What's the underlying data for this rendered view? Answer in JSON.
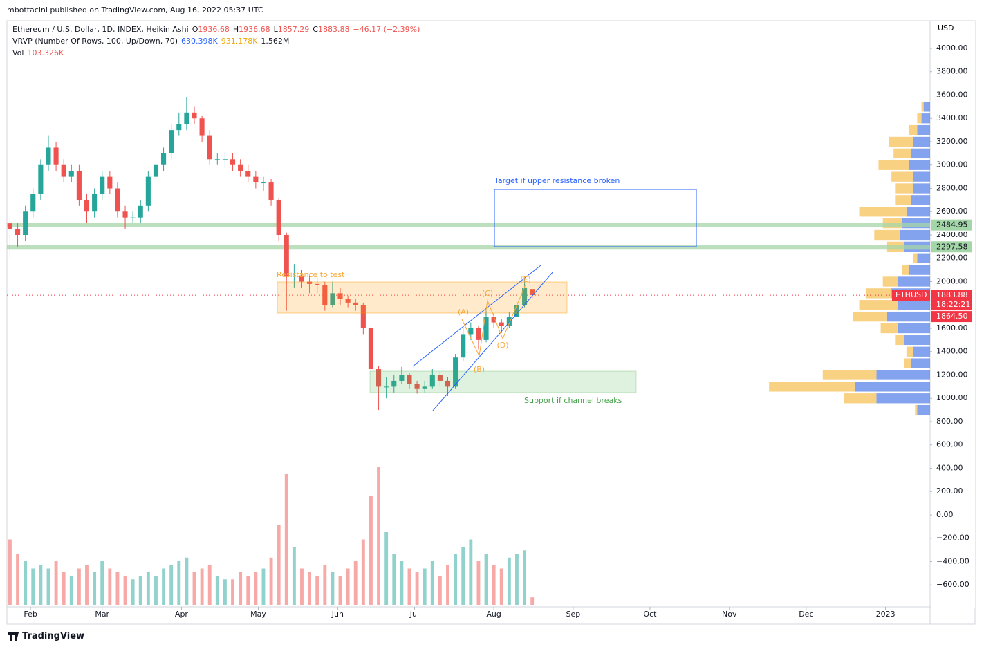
{
  "header": {
    "publisher": "mbottacini published on TradingView.com, Aug 16, 2022 05:37 UTC"
  },
  "footer": {
    "brand": "TradingView"
  },
  "chart_data": {
    "type": "candlestick",
    "title": "Ethereum / U.S. Dollar, 1D, INDEX, Heikin Ashi",
    "ohlc_legend": [
      {
        "label": "O",
        "value": "1936.68"
      },
      {
        "label": "H",
        "value": "1936.68"
      },
      {
        "label": "L",
        "value": "1857.29"
      },
      {
        "label": "C",
        "value": "1883.88"
      }
    ],
    "change": "−46.17 (−2.39%)",
    "indicators": [
      {
        "name": "VRVP (Number Of Rows, 100, Up/Down, 70)",
        "values": [
          "630.398K",
          "931.178K",
          "1.562M"
        ],
        "value_colors": [
          "#2962ff",
          "#f0a500",
          "#131722"
        ]
      },
      {
        "name": "Vol",
        "values": [
          "103.326K"
        ],
        "value_colors": [
          "#ef5350"
        ]
      }
    ],
    "currency": "USD",
    "categories": [
      null,
      null,
      null,
      null,
      null,
      null,
      null,
      null,
      null,
      null,
      null,
      null,
      null,
      null,
      null,
      null,
      null,
      null,
      null,
      null,
      null,
      null,
      null,
      null,
      null,
      null,
      null,
      null,
      null,
      null,
      null,
      null,
      null,
      null,
      null,
      null,
      null,
      null,
      null,
      null,
      null,
      null,
      null,
      null,
      null,
      null,
      null,
      null,
      null,
      null,
      null,
      null,
      null,
      null,
      null,
      null,
      null,
      null,
      null,
      null,
      null,
      null,
      null,
      null,
      null,
      null,
      null,
      null,
      null
    ],
    "open": [
      2500,
      2450,
      2400,
      2600,
      2750,
      3000,
      3150,
      3000,
      2900,
      2950,
      2700,
      2600,
      2750,
      2900,
      2800,
      2600,
      2550,
      2550,
      2650,
      2900,
      3000,
      3100,
      3300,
      3350,
      3450,
      3400,
      3250,
      3050,
      3050,
      3050,
      3000,
      2950,
      2900,
      2850,
      2850,
      2700,
      2400,
      2050,
      2050,
      2000,
      1980,
      1970,
      1800,
      1900,
      1850,
      1820,
      1800,
      1600,
      1250,
      1100,
      1100,
      1150,
      1200,
      1120,
      1080,
      1100,
      1200,
      1150,
      1100,
      1350,
      1550,
      1600,
      1500,
      1700,
      1650,
      1620,
      1700,
      1800,
      1936.68
    ],
    "high": [
      2550,
      2500,
      2650,
      2800,
      3050,
      3250,
      3200,
      3050,
      3000,
      3000,
      2750,
      2800,
      2950,
      2950,
      2850,
      2650,
      2600,
      2700,
      2950,
      3050,
      3150,
      3350,
      3450,
      3580,
      3500,
      3420,
      3300,
      3100,
      3100,
      3100,
      3050,
      3000,
      2950,
      2900,
      2880,
      2720,
      2420,
      2150,
      2100,
      2050,
      2030,
      2000,
      2000,
      1950,
      1880,
      1850,
      1820,
      1620,
      1280,
      1180,
      1200,
      1270,
      1220,
      1150,
      1150,
      1250,
      1230,
      1180,
      1380,
      1600,
      1650,
      1620,
      1780,
      1730,
      1680,
      1740,
      1880,
      2020,
      1936.68
    ],
    "low": [
      2200,
      2300,
      2350,
      2550,
      2700,
      2950,
      2950,
      2850,
      2850,
      2650,
      2500,
      2550,
      2700,
      2750,
      2550,
      2450,
      2500,
      2500,
      2600,
      2850,
      2950,
      3050,
      3250,
      3300,
      3350,
      3200,
      3000,
      3000,
      2980,
      2950,
      2900,
      2850,
      2800,
      2780,
      2650,
      2350,
      1750,
      1950,
      1950,
      1900,
      1900,
      1750,
      1780,
      1800,
      1780,
      1750,
      1550,
      1200,
      900,
      1000,
      1050,
      1120,
      1080,
      1040,
      1050,
      1080,
      1100,
      1020,
      1080,
      1320,
      1500,
      1420,
      1480,
      1600,
      1560,
      1600,
      1680,
      1780,
      1857.29
    ],
    "close": [
      2450,
      2400,
      2600,
      2750,
      3000,
      3150,
      3000,
      2900,
      2950,
      2700,
      2600,
      2750,
      2900,
      2800,
      2600,
      2550,
      2550,
      2650,
      2900,
      3000,
      3100,
      3300,
      3350,
      3450,
      3400,
      3250,
      3050,
      3050,
      3050,
      3000,
      2950,
      2900,
      2850,
      2850,
      2700,
      2400,
      2050,
      2050,
      2000,
      1980,
      1970,
      1800,
      1900,
      1850,
      1820,
      1800,
      1600,
      1250,
      1100,
      1100,
      1150,
      1200,
      1120,
      1080,
      1100,
      1200,
      1150,
      1100,
      1350,
      1550,
      1600,
      1500,
      1700,
      1650,
      1620,
      1700,
      1800,
      1950,
      1883.88
    ],
    "up_color": "#26a69a",
    "down_color": "#ef5350",
    "volume": [
      900000,
      700000,
      600000,
      500000,
      550000,
      500000,
      600000,
      450000,
      400000,
      500000,
      550000,
      450000,
      600000,
      500000,
      450000,
      400000,
      350000,
      400000,
      450000,
      400000,
      500000,
      550000,
      600000,
      650000,
      450000,
      500000,
      550000,
      400000,
      350000,
      350000,
      450000,
      400000,
      450000,
      500000,
      650000,
      1100000,
      1800000,
      800000,
      500000,
      450000,
      400000,
      550000,
      450000,
      400000,
      500000,
      600000,
      900000,
      1500000,
      1900000,
      1000000,
      700000,
      600000,
      500000,
      450000,
      500000,
      600000,
      400000,
      550000,
      700000,
      800000,
      900000,
      600000,
      700000,
      550000,
      500000,
      650000,
      700000,
      750000,
      103326
    ],
    "volume_ylim": [
      0,
      2000000
    ],
    "xlim": [
      -0.4,
      119.8
    ],
    "xticks": [
      {
        "value": 2.67,
        "label": "Feb"
      },
      {
        "value": 12,
        "label": "Mar"
      },
      {
        "value": 22.33,
        "label": "Apr"
      },
      {
        "value": 32.33,
        "label": "May"
      },
      {
        "value": 42.67,
        "label": "Jun"
      },
      {
        "value": 52.67,
        "label": "Jul"
      },
      {
        "value": 63,
        "label": "Aug"
      },
      {
        "value": 73.33,
        "label": "Sep"
      },
      {
        "value": 83.33,
        "label": "Oct"
      },
      {
        "value": 93.67,
        "label": "Nov"
      },
      {
        "value": 103.67,
        "label": "Dec"
      },
      {
        "value": 114,
        "label": "2023"
      }
    ],
    "ylim": [
      -800,
      4237
    ],
    "yticks": [
      {
        "value": -600,
        "label": "−600.00"
      },
      {
        "value": -400,
        "label": "−400.00"
      },
      {
        "value": -200,
        "label": "−200.00"
      },
      {
        "value": 0,
        "label": "0.00"
      },
      {
        "value": 200,
        "label": "200.00"
      },
      {
        "value": 400,
        "label": "400.00"
      },
      {
        "value": 600,
        "label": "600.00"
      },
      {
        "value": 800,
        "label": "800.00"
      },
      {
        "value": 1000,
        "label": "1000.00"
      },
      {
        "value": 1200,
        "label": "1200.00"
      },
      {
        "value": 1400,
        "label": "1400.00"
      },
      {
        "value": 1600,
        "label": "1600.00"
      },
      {
        "value": 1800,
        "label": "1800.00"
      },
      {
        "value": 2000,
        "label": "2000.00"
      },
      {
        "value": 2200,
        "label": "2200.00"
      },
      {
        "value": 2400,
        "label": "2400.00"
      },
      {
        "value": 2600,
        "label": "2600.00"
      },
      {
        "value": 2800,
        "label": "2800.00"
      },
      {
        "value": 3000,
        "label": "3000.00"
      },
      {
        "value": 3200,
        "label": "3200.00"
      },
      {
        "value": 3400,
        "label": "3400.00"
      },
      {
        "value": 3600,
        "label": "3600.00"
      },
      {
        "value": 3800,
        "label": "3800.00"
      },
      {
        "value": 4000,
        "label": "4000.00"
      }
    ],
    "grid": false,
    "volume_profile": {
      "prices": [
        900,
        1000,
        1100,
        1200,
        1300,
        1400,
        1500,
        1600,
        1700,
        1800,
        1900,
        2000,
        2100,
        2200,
        2300,
        2400,
        2500,
        2600,
        2700,
        2800,
        2900,
        3000,
        3100,
        3200,
        3300,
        3400,
        3500
      ],
      "up": [
        600,
        2500,
        3500,
        2500,
        900,
        800,
        1200,
        1500,
        2000,
        1500,
        1800,
        1500,
        1000,
        600,
        1200,
        1400,
        1300,
        1100,
        900,
        800,
        800,
        1000,
        900,
        800,
        600,
        400,
        300
      ],
      "down": [
        100,
        1500,
        4000,
        2500,
        300,
        300,
        400,
        800,
        1600,
        1800,
        1200,
        700,
        300,
        200,
        800,
        1200,
        900,
        2200,
        700,
        800,
        1000,
        1400,
        800,
        1100,
        400,
        200,
        100
      ],
      "up_color": "#5b84e8",
      "down_color": "#f5c15a",
      "xlim": [
        0,
        43000
      ]
    },
    "price_lines": [
      {
        "value": 2484.95,
        "label": "2484.95",
        "color": "#a5d6a7"
      },
      {
        "value": 2297.58,
        "label": "2297.58",
        "color": "#a5d6a7"
      }
    ],
    "last_price": {
      "symbol": "ETHUSD",
      "value": 1883.88,
      "label": "1883.88",
      "countdown": "18:22:21",
      "color": "#f23645"
    },
    "prev_close": {
      "value": 1864.5,
      "label": "1864.50",
      "color": "#f23645"
    },
    "annotations": {
      "resistance": "Resistance to test",
      "target": "Target if upper resistance broken",
      "support": "Support if channel breaks",
      "waves": [
        "(A)",
        "(B)",
        "(C)",
        "(D)",
        "(E)"
      ]
    }
  }
}
